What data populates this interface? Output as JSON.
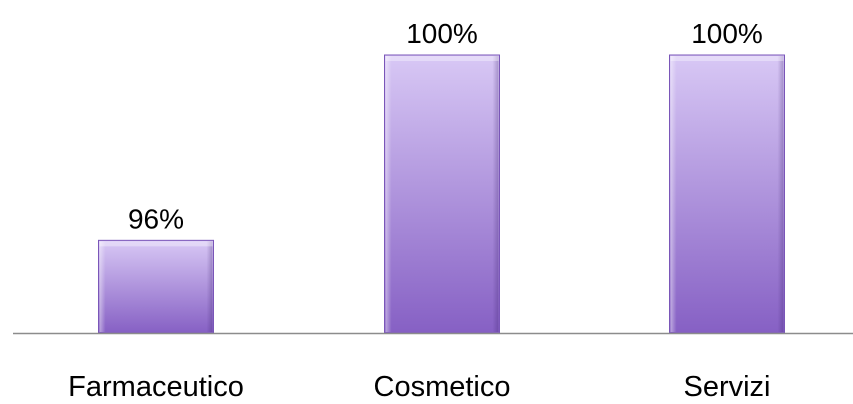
{
  "chart_data": {
    "type": "bar",
    "categories": [
      "Farmaceutico",
      "Cosmetico",
      "Servizi"
    ],
    "values": [
      96,
      100,
      100
    ],
    "value_labels": [
      "96%",
      "100%",
      "100%"
    ],
    "title": "",
    "xlabel": "",
    "ylabel": "",
    "ylim": [
      94,
      100
    ],
    "grid": false,
    "legend": "none",
    "colors": {
      "bar_top": "#d8c8f5",
      "bar_bottom": "#8660c4",
      "bar_edge": "#7a56b8",
      "axis": "#8c8c8c"
    }
  }
}
